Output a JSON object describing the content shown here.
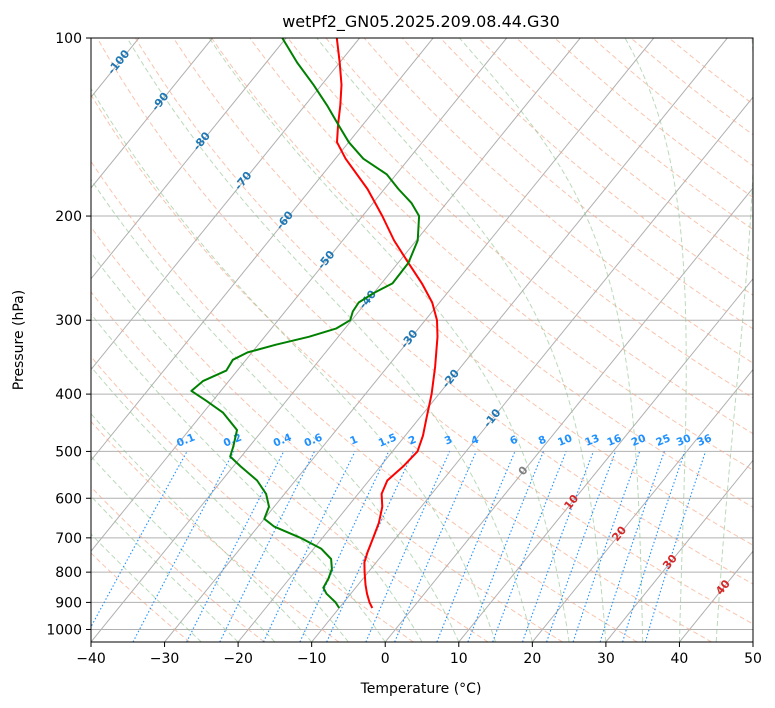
{
  "chart_data": {
    "type": "line",
    "subtype": "skew-T log-P diagram",
    "title": "wetPf2_GN05.2025.209.08.44.G30",
    "xlabel": "Temperature (°C)",
    "ylabel": "Pressure (hPa)",
    "xlim": [
      -40,
      50
    ],
    "ylim": [
      1050,
      100
    ],
    "y_scale": "log",
    "x_ticks": [
      -40,
      -30,
      -20,
      -10,
      0,
      10,
      20,
      30,
      40,
      50
    ],
    "y_ticks": [
      100,
      200,
      300,
      400,
      500,
      600,
      700,
      800,
      900,
      1000
    ],
    "grid": true,
    "series": [
      {
        "color": "#ff0000",
        "points": [
          {
            "p": 920,
            "t": -5.5
          },
          {
            "p": 900,
            "t": -6.5
          },
          {
            "p": 870,
            "t": -7.8
          },
          {
            "p": 840,
            "t": -9.0
          },
          {
            "p": 800,
            "t": -10.5
          },
          {
            "p": 770,
            "t": -11.6
          },
          {
            "p": 740,
            "t": -12.3
          },
          {
            "p": 700,
            "t": -13.1
          },
          {
            "p": 660,
            "t": -14.0
          },
          {
            "p": 620,
            "t": -15.3
          },
          {
            "p": 590,
            "t": -16.8
          },
          {
            "p": 560,
            "t": -17.5
          },
          {
            "p": 530,
            "t": -16.9
          },
          {
            "p": 500,
            "t": -16.6
          },
          {
            "p": 470,
            "t": -17.6
          },
          {
            "p": 440,
            "t": -19.0
          },
          {
            "p": 400,
            "t": -21.0
          },
          {
            "p": 360,
            "t": -23.5
          },
          {
            "p": 320,
            "t": -26.5
          },
          {
            "p": 300,
            "t": -28.4
          },
          {
            "p": 280,
            "t": -31.0
          },
          {
            "p": 260,
            "t": -34.5
          },
          {
            "p": 240,
            "t": -38.6
          },
          {
            "p": 220,
            "t": -43.0
          },
          {
            "p": 200,
            "t": -47.3
          },
          {
            "p": 180,
            "t": -52.3
          },
          {
            "p": 160,
            "t": -58.6
          },
          {
            "p": 150,
            "t": -61.6
          },
          {
            "p": 140,
            "t": -63.4
          },
          {
            "p": 130,
            "t": -65.2
          },
          {
            "p": 120,
            "t": -67.3
          },
          {
            "p": 110,
            "t": -70.0
          },
          {
            "p": 100,
            "t": -73.1
          }
        ]
      },
      {
        "color": "#008000",
        "points": [
          {
            "p": 920,
            "t": -10.0
          },
          {
            "p": 900,
            "t": -11.1
          },
          {
            "p": 870,
            "t": -13.3
          },
          {
            "p": 850,
            "t": -14.4
          },
          {
            "p": 820,
            "t": -14.7
          },
          {
            "p": 790,
            "t": -15.3
          },
          {
            "p": 760,
            "t": -16.5
          },
          {
            "p": 730,
            "t": -19.0
          },
          {
            "p": 700,
            "t": -23.0
          },
          {
            "p": 670,
            "t": -27.8
          },
          {
            "p": 650,
            "t": -30.0
          },
          {
            "p": 620,
            "t": -30.7
          },
          {
            "p": 590,
            "t": -32.5
          },
          {
            "p": 560,
            "t": -35.2
          },
          {
            "p": 530,
            "t": -39.0
          },
          {
            "p": 510,
            "t": -41.5
          },
          {
            "p": 490,
            "t": -42.2
          },
          {
            "p": 460,
            "t": -43.5
          },
          {
            "p": 430,
            "t": -47.3
          },
          {
            "p": 410,
            "t": -51.0
          },
          {
            "p": 395,
            "t": -54.0
          },
          {
            "p": 380,
            "t": -53.5
          },
          {
            "p": 365,
            "t": -51.5
          },
          {
            "p": 350,
            "t": -51.8
          },
          {
            "p": 340,
            "t": -50.6
          },
          {
            "p": 330,
            "t": -47.6
          },
          {
            "p": 320,
            "t": -44.0
          },
          {
            "p": 310,
            "t": -41.2
          },
          {
            "p": 300,
            "t": -40.2
          },
          {
            "p": 290,
            "t": -40.8
          },
          {
            "p": 280,
            "t": -41.0
          },
          {
            "p": 270,
            "t": -40.0
          },
          {
            "p": 260,
            "t": -38.5
          },
          {
            "p": 240,
            "t": -38.6
          },
          {
            "p": 220,
            "t": -39.8
          },
          {
            "p": 200,
            "t": -42.3
          },
          {
            "p": 190,
            "t": -44.8
          },
          {
            "p": 180,
            "t": -48.1
          },
          {
            "p": 170,
            "t": -51.3
          },
          {
            "p": 160,
            "t": -56.2
          },
          {
            "p": 150,
            "t": -60.0
          },
          {
            "p": 140,
            "t": -63.4
          },
          {
            "p": 130,
            "t": -67.0
          },
          {
            "p": 120,
            "t": -71.1
          },
          {
            "p": 110,
            "t": -75.8
          },
          {
            "p": 100,
            "t": -80.5
          }
        ]
      }
    ],
    "dry_adiabat_labels": [
      "-100",
      "-90",
      "-80",
      "-70",
      "-60",
      "-50",
      "-40",
      "-30",
      "-20",
      "-10"
    ],
    "moist_adiabat_labels": [
      "0",
      "10",
      "20",
      "30",
      "40"
    ],
    "mixing_ratio_labels": [
      "0.1",
      "0.2",
      "0.4",
      "0.6",
      "1",
      "1.5",
      "2",
      "3",
      "4",
      "6",
      "8",
      "10",
      "13",
      "16",
      "20",
      "25",
      "30",
      "36"
    ],
    "colors": {
      "temperature": "#ff0000",
      "dewpoint": "#008000",
      "dry_adiabat": "#1f77b4",
      "moist_adiabat": "#d62728",
      "mixing_ratio": "#1e90ff"
    }
  }
}
